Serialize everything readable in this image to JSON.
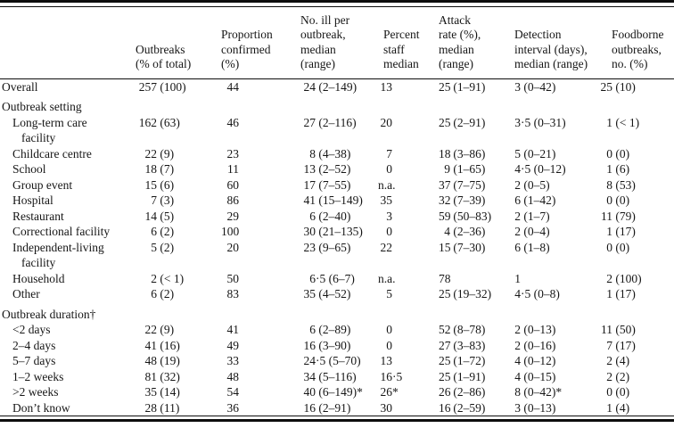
{
  "table": {
    "columns": [
      {
        "label": ""
      },
      {
        "label": "Outbreaks\n(% of total)"
      },
      {
        "label": "Proportion\nconfirmed\n(%)"
      },
      {
        "label": "No. ill per\noutbreak,\nmedian\n(range)"
      },
      {
        "label": "Percent\nstaff\nmedian"
      },
      {
        "label": "Attack\nrate (%),\nmedian\n(range)"
      },
      {
        "label": "Detection\ninterval (days),\nmedian (range)"
      },
      {
        "label": "Foodborne\noutbreaks,\nno. (%)"
      }
    ],
    "rows": [
      {
        "label": "Overall",
        "type": "data",
        "indent": 0,
        "cells": [
          "257 (100)",
          "44",
          "24 (2–149)",
          "13",
          "25 (1–91)",
          "3 (0–42)",
          "25 (10)"
        ]
      },
      {
        "label": "Outbreak setting",
        "type": "section",
        "cells": []
      },
      {
        "label": "Long-term care\nfacility",
        "type": "data",
        "indent": 1,
        "cells": [
          "162 (63)",
          "46",
          "27 (2–116)",
          "20",
          "25 (2–91)",
          "3·5 (0–31)",
          "1 (< 1)"
        ]
      },
      {
        "label": "Childcare centre",
        "type": "data",
        "indent": 1,
        "cells": [
          "22 (9)",
          "23",
          "8 (4–38)",
          "7",
          "18 (3–86)",
          "5 (0–21)",
          "0 (0)"
        ]
      },
      {
        "label": "School",
        "type": "data",
        "indent": 1,
        "cells": [
          "18 (7)",
          "11",
          "13 (2–52)",
          "0",
          "9 (1–65)",
          "4·5 (0–12)",
          "1 (6)"
        ]
      },
      {
        "label": "Group event",
        "type": "data",
        "indent": 1,
        "cells": [
          "15 (6)",
          "60",
          "17 (7–55)",
          "n.a.",
          "37 (7–75)",
          "2 (0–5)",
          "8 (53)"
        ]
      },
      {
        "label": "Hospital",
        "type": "data",
        "indent": 1,
        "cells": [
          "7 (3)",
          "86",
          "41 (15–149)",
          "35",
          "32 (7–39)",
          "6 (1–42)",
          "0 (0)"
        ]
      },
      {
        "label": "Restaurant",
        "type": "data",
        "indent": 1,
        "cells": [
          "14 (5)",
          "29",
          "6 (2–40)",
          "3",
          "59 (50–83)",
          "2 (1–7)",
          "11 (79)"
        ]
      },
      {
        "label": "Correctional facility",
        "type": "data",
        "indent": 1,
        "cells": [
          "6 (2)",
          "100",
          "30 (21–135)",
          "0",
          "4 (2–36)",
          "2 (0–4)",
          "1 (17)"
        ]
      },
      {
        "label": "Independent-living\nfacility",
        "type": "data",
        "indent": 1,
        "cells": [
          "5 (2)",
          "20",
          "23 (9–65)",
          "22",
          "15 (7–30)",
          "6 (1–8)",
          "0 (0)"
        ]
      },
      {
        "label": "Household",
        "type": "data",
        "indent": 1,
        "cells": [
          "2 (< 1)",
          "50",
          "6·5 (6–7)",
          "n.a.",
          "78",
          "1",
          "2 (100)"
        ]
      },
      {
        "label": "Other",
        "type": "data",
        "indent": 1,
        "cells": [
          "6 (2)",
          "83",
          "35 (4–52)",
          "5",
          "25 (19–32)",
          "4·5 (0–8)",
          "1 (17)"
        ]
      },
      {
        "label": "Outbreak duration†",
        "type": "section",
        "cells": []
      },
      {
        "label": "<2 days",
        "type": "data",
        "indent": 1,
        "cells": [
          "22 (9)",
          "41",
          "6 (2–89)",
          "0",
          "52 (8–78)",
          "2 (0–13)",
          "11 (50)"
        ]
      },
      {
        "label": "2–4 days",
        "type": "data",
        "indent": 1,
        "cells": [
          "41 (16)",
          "49",
          "16 (3–90)",
          "0",
          "27 (3–83)",
          "2 (0–16)",
          "7 (17)"
        ]
      },
      {
        "label": "5–7 days",
        "type": "data",
        "indent": 1,
        "cells": [
          "48 (19)",
          "33",
          "24·5 (5–70)",
          "13",
          "25 (1–72)",
          "4 (0–12)",
          "2 (4)"
        ]
      },
      {
        "label": "1–2 weeks",
        "type": "data",
        "indent": 1,
        "cells": [
          "81 (32)",
          "48",
          "34 (5–116)",
          "16·5",
          "25 (1–91)",
          "4 (0–15)",
          "2 (2)"
        ]
      },
      {
        "label": ">2 weeks",
        "type": "data",
        "indent": 1,
        "cells": [
          "35 (14)",
          "54",
          "40 (6–149)*",
          "26*",
          "26 (2–86)",
          "8 (0–42)*",
          "0 (0)"
        ]
      },
      {
        "label": "Don’t know",
        "type": "data",
        "indent": 1,
        "cells": [
          "28 (11)",
          "36",
          "16 (2–91)",
          "30",
          "16 (2–59)",
          "3 (0–13)",
          "1 (4)"
        ]
      }
    ]
  }
}
